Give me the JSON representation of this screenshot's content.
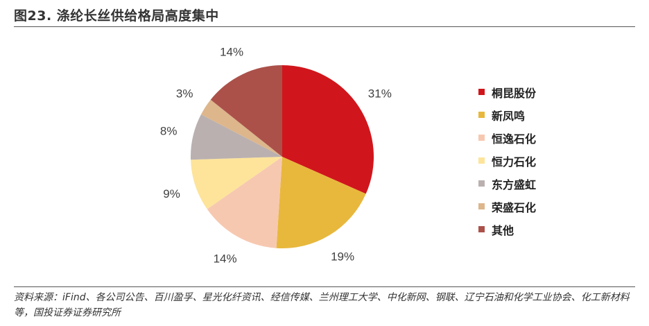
{
  "figure": {
    "title": "图23. 涤纶长丝供给格局高度集中",
    "source": "资料来源：iFind、各公司公告、百川盈孚、星光化纤资讯、经信传媒、兰州理工大学、中化新网、钢联、辽宁石油和化学工业协会、化工新材料等，国投证券证券研究所"
  },
  "chart_data": {
    "type": "pie",
    "title": "",
    "legend_position": "right",
    "slices": [
      {
        "name": "桐昆股份",
        "value": 31,
        "label": "31%",
        "color": "#D0161C"
      },
      {
        "name": "新凤鸣",
        "value": 19,
        "label": "19%",
        "color": "#E8B83C"
      },
      {
        "name": "恒逸石化",
        "value": 14,
        "label": "14%",
        "color": "#F7C8B0"
      },
      {
        "name": "恒力石化",
        "value": 9,
        "label": "9%",
        "color": "#FDE49A"
      },
      {
        "name": "东方盛虹",
        "value": 8,
        "label": "8%",
        "color": "#BAB0B0"
      },
      {
        "name": "荣盛石化",
        "value": 3,
        "label": "3%",
        "color": "#DDB68C"
      },
      {
        "name": "其他",
        "value": 14,
        "label": "14%",
        "color": "#AB514A"
      }
    ]
  }
}
